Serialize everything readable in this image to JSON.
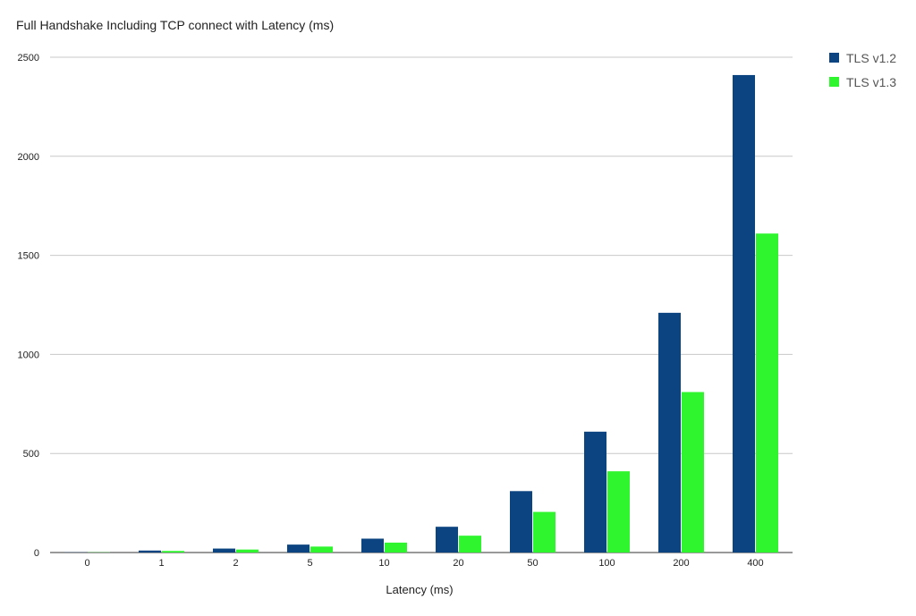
{
  "chart_data": {
    "type": "bar",
    "title": "Full Handshake Including TCP connect with Latency (ms)",
    "xlabel": "Latency (ms)",
    "ylabel": "",
    "categories": [
      "0",
      "1",
      "2",
      "5",
      "10",
      "20",
      "50",
      "100",
      "200",
      "400"
    ],
    "series": [
      {
        "name": "TLS v1.2",
        "color": "#0b4480",
        "values": [
          1,
          10,
          20,
          40,
          70,
          130,
          310,
          610,
          1210,
          2410
        ]
      },
      {
        "name": "TLS v1.3",
        "color": "#2ef52e",
        "values": [
          1,
          8,
          15,
          30,
          50,
          85,
          205,
          410,
          810,
          1610
        ]
      }
    ],
    "ylim": [
      0,
      2500
    ],
    "yticks": [
      "0",
      "500",
      "1000",
      "1500",
      "2000",
      "2500"
    ],
    "grid": true,
    "legend_position": "top-right"
  }
}
